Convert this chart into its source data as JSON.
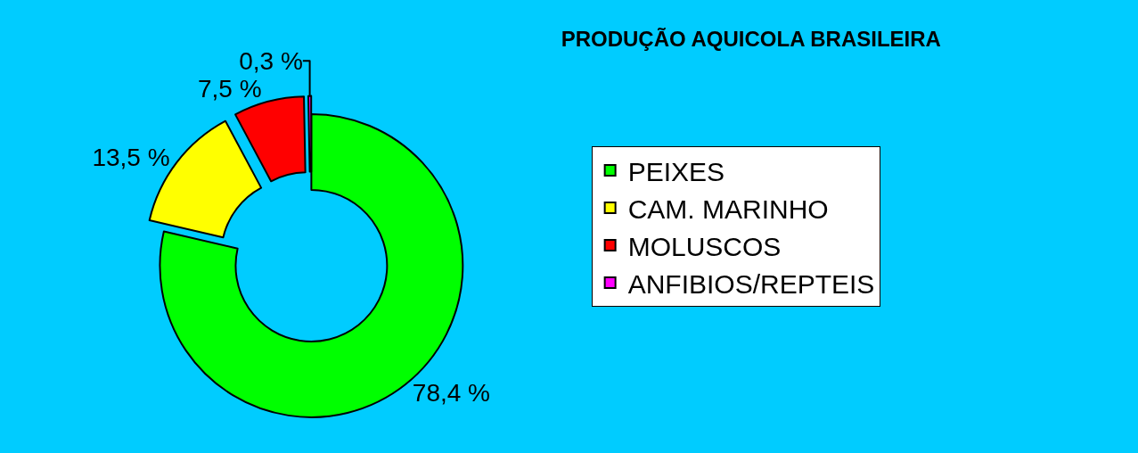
{
  "chart_data": {
    "type": "donut",
    "title": "PRODUÇÃO AQUICOLA BRASILEIRA",
    "categories": [
      "PEIXES",
      "CAM. MARINHO",
      "MOLUSCOS",
      "ANFIBIOS/REPTEIS"
    ],
    "values": [
      78.4,
      13.5,
      7.5,
      0.3
    ],
    "colors": [
      "#00ff00",
      "#ffff00",
      "#ff0000",
      "#ff00ff"
    ],
    "value_labels": [
      "78,4 %",
      "13,5 %",
      "7,5 %",
      "0,3 %"
    ],
    "legend": "right"
  }
}
